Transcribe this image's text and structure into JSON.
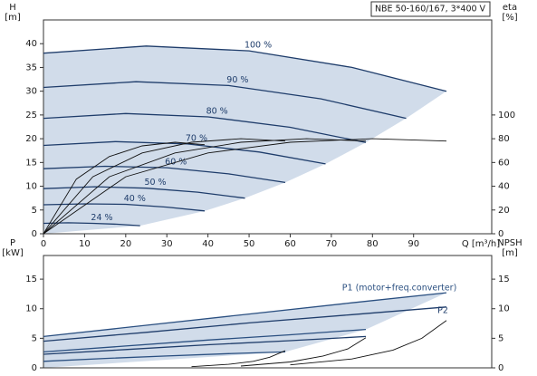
{
  "chart_data": [
    {
      "type": "line",
      "title": "NBE 50-160/167, 3*400 V",
      "y_label": "H",
      "y_unit": "[m]",
      "y2_label": "eta",
      "y2_unit": "[%]",
      "x_label": "Q [m³/h]",
      "xlim": [
        0,
        109
      ],
      "xticks": [
        0,
        10,
        20,
        30,
        40,
        50,
        60,
        70,
        80,
        90
      ],
      "ylim": [
        0,
        45
      ],
      "yticks": [
        0,
        5,
        10,
        15,
        20,
        25,
        30,
        35,
        40
      ],
      "y2lim": [
        0,
        180
      ],
      "y2ticks": [
        0,
        20,
        40,
        60,
        80,
        100
      ],
      "shade_color": "#c9d6e6",
      "series": [
        {
          "name": "100 %",
          "color": "#1f3d6b",
          "x": [
            0,
            25,
            50,
            75,
            98
          ],
          "values": [
            38,
            39.5,
            38.5,
            35,
            30
          ]
        },
        {
          "name": "90 %",
          "color": "#1f3d6b",
          "x": [
            0,
            22.5,
            45,
            67.5,
            88.2
          ],
          "values": [
            30.8,
            32,
            31.2,
            28.4,
            24.3
          ]
        },
        {
          "name": "80 %",
          "color": "#1f3d6b",
          "x": [
            0,
            20,
            40,
            60,
            78.4
          ],
          "values": [
            24.3,
            25.3,
            24.6,
            22.4,
            19.2
          ]
        },
        {
          "name": "70 %",
          "color": "#1f3d6b",
          "x": [
            0,
            17.5,
            35,
            52.5,
            68.6
          ],
          "values": [
            18.6,
            19.4,
            18.9,
            17.2,
            14.7
          ]
        },
        {
          "name": "60 %",
          "color": "#1f3d6b",
          "x": [
            0,
            15,
            30,
            45,
            58.8
          ],
          "values": [
            13.7,
            14.2,
            13.9,
            12.6,
            10.8
          ]
        },
        {
          "name": "50 %",
          "color": "#1f3d6b",
          "x": [
            0,
            12.5,
            25,
            37.5,
            49
          ],
          "values": [
            9.5,
            9.9,
            9.6,
            8.75,
            7.5
          ]
        },
        {
          "name": "40 %",
          "color": "#1f3d6b",
          "x": [
            0,
            10,
            20,
            30,
            39.2
          ],
          "values": [
            6.1,
            6.3,
            6.2,
            5.6,
            4.8
          ]
        },
        {
          "name": "24 %",
          "color": "#1f3d6b",
          "x": [
            0,
            6,
            12,
            18,
            23.5
          ],
          "values": [
            2.2,
            2.3,
            2.2,
            2.0,
            1.7
          ]
        },
        {
          "color": "#111111",
          "axis": "y2",
          "x": [
            0,
            20,
            40,
            60,
            80,
            98
          ],
          "values": [
            0,
            48,
            68,
            77,
            80,
            78
          ]
        },
        {
          "color": "#111111",
          "axis": "y2",
          "x": [
            0,
            16,
            32,
            48,
            64,
            78.4
          ],
          "values": [
            0,
            48,
            68,
            77,
            80,
            78
          ]
        },
        {
          "color": "#111111",
          "axis": "y2",
          "x": [
            0,
            12,
            24,
            36,
            48,
            58.8
          ],
          "values": [
            0,
            48,
            68,
            77,
            80,
            78
          ]
        },
        {
          "color": "#111111",
          "axis": "y2",
          "x": [
            0,
            8,
            16,
            24,
            32,
            39.2
          ],
          "values": [
            0,
            46,
            65,
            74,
            77,
            75
          ]
        }
      ]
    },
    {
      "type": "line",
      "y_label": "P",
      "y_unit": "[kW]",
      "y2_label": "NPSH",
      "y2_unit": "[m]",
      "xlim": [
        0,
        109
      ],
      "ylim": [
        0,
        19
      ],
      "yticks": [
        0,
        5,
        10,
        15
      ],
      "y2lim": [
        0,
        19
      ],
      "y2ticks": [
        0,
        5,
        10,
        15
      ],
      "shade_color": "#c9d6e6",
      "series": [
        {
          "name": "P1 (motor+freq.converter)",
          "color": "#2a4f80",
          "x": [
            0,
            25,
            50,
            75,
            98
          ],
          "values": [
            5.3,
            7.2,
            9.1,
            11,
            12.7
          ]
        },
        {
          "color": "#2a4f80",
          "x": [
            0,
            20,
            40,
            60,
            78.4
          ],
          "values": [
            2.7,
            3.7,
            4.7,
            5.6,
            6.5
          ]
        },
        {
          "color": "#2a4f80",
          "x": [
            0,
            15,
            30,
            45,
            58.8
          ],
          "values": [
            1.1,
            1.6,
            2.0,
            2.4,
            2.7
          ]
        },
        {
          "name": "P2",
          "color": "#1f3d6b",
          "x": [
            0,
            25,
            50,
            75,
            98
          ],
          "values": [
            4.5,
            6,
            7.6,
            9,
            10.3
          ]
        },
        {
          "color": "#1f3d6b",
          "x": [
            0,
            20,
            40,
            60,
            78.4
          ],
          "values": [
            2.3,
            3.1,
            3.9,
            4.6,
            5.3
          ]
        },
        {
          "color": "#111111",
          "axis": "y2",
          "x": [
            60,
            75,
            85,
            92,
            98
          ],
          "values": [
            0.5,
            1.5,
            3,
            5,
            8
          ]
        },
        {
          "color": "#111111",
          "axis": "y2",
          "x": [
            48,
            60,
            68,
            74,
            78.4
          ],
          "values": [
            0.3,
            1,
            2,
            3.2,
            5.1
          ]
        },
        {
          "color": "#111111",
          "axis": "y2",
          "x": [
            36,
            45,
            51,
            55,
            58.8
          ],
          "values": [
            0.2,
            0.6,
            1.1,
            1.8,
            2.9
          ]
        }
      ]
    }
  ]
}
